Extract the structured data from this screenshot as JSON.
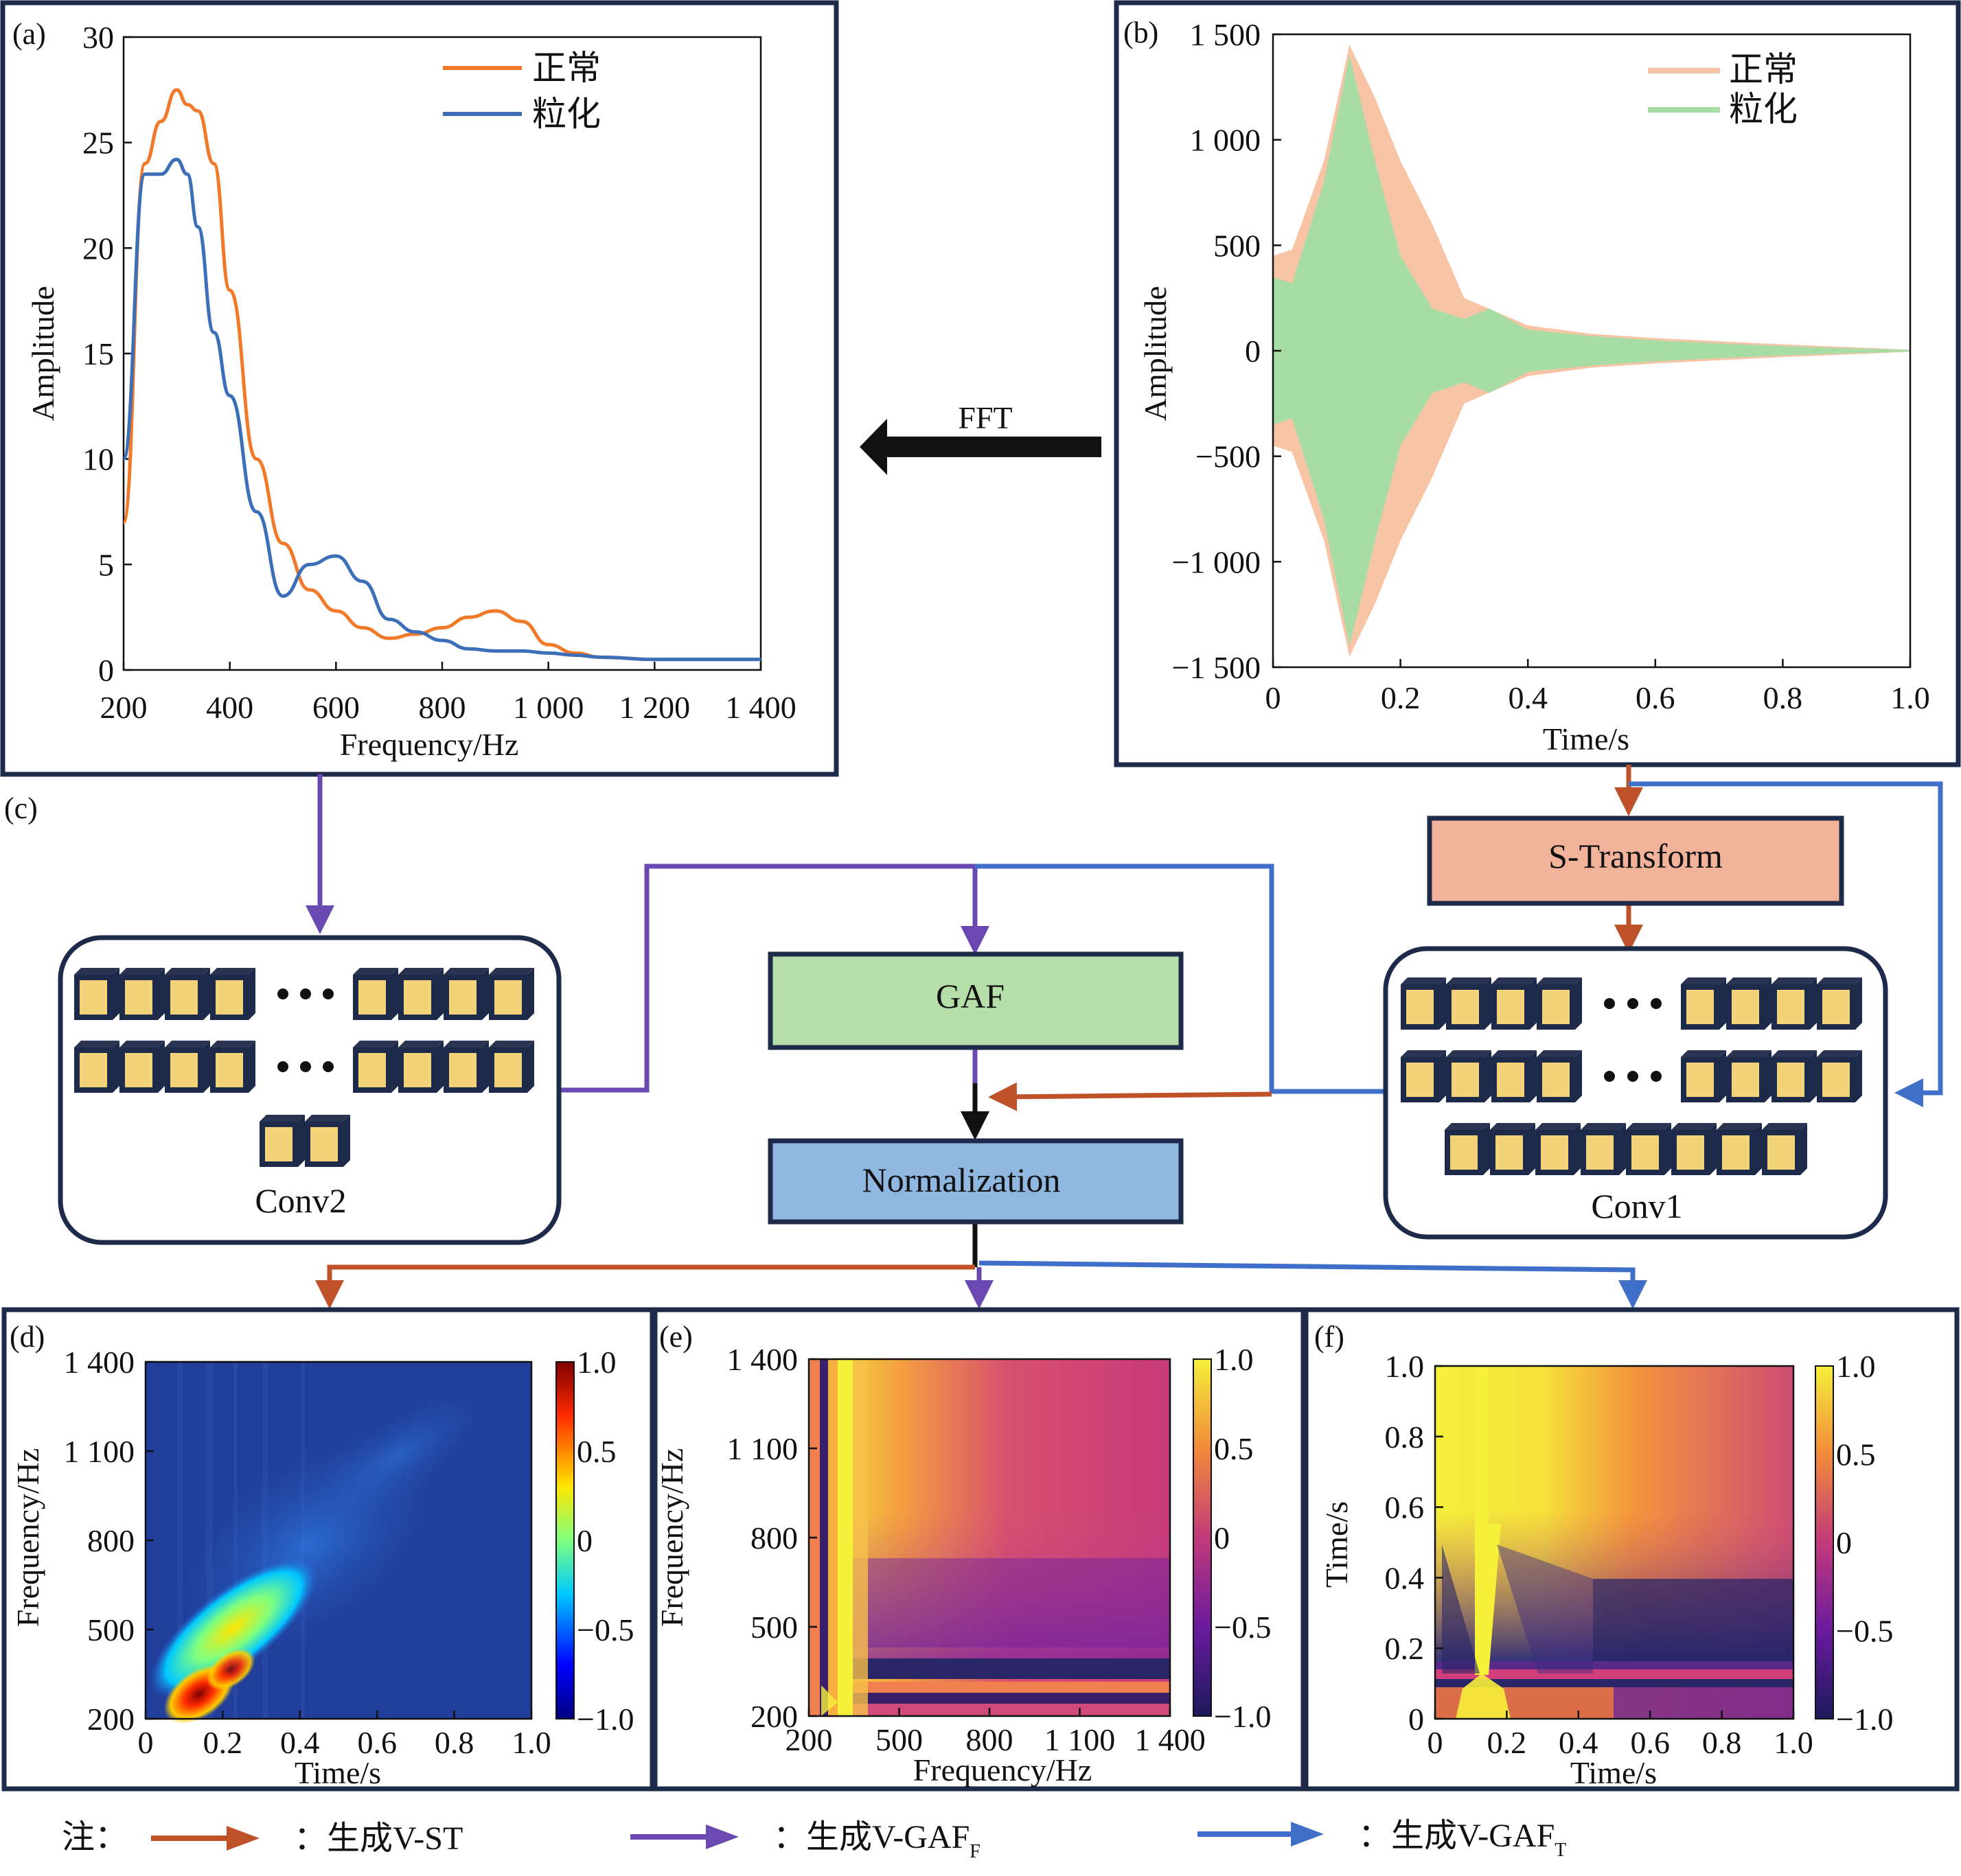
{
  "panel_a": {
    "tag": "(a)",
    "xlabel": "Frequency/Hz",
    "ylabel": "Amplitude",
    "xticks": [
      "200",
      "400",
      "600",
      "800",
      "1 000",
      "1 200",
      "1 400"
    ],
    "yticks": [
      "0",
      "5",
      "10",
      "15",
      "20",
      "25",
      "30"
    ],
    "legend": [
      "正常",
      "粒化"
    ],
    "colors": {
      "normal": "#f07a2a",
      "granulated": "#3c6fb8"
    }
  },
  "panel_b": {
    "tag": "(b)",
    "xlabel": "Time/s",
    "ylabel": "Amplitude",
    "xticks": [
      "0",
      "0.2",
      "0.4",
      "0.6",
      "0.8",
      "1.0"
    ],
    "yticks": [
      "1 500",
      "1 000",
      "500",
      "0",
      "−500",
      "−1 000",
      "−1 500"
    ],
    "legend": [
      "正常",
      "粒化"
    ],
    "colors": {
      "normal": "#f7c4a6",
      "granulated": "#a8dca5"
    }
  },
  "panel_c_tag": "(c)",
  "flow": {
    "fft_label": "FFT",
    "s_transform": "S-Transform",
    "gaf": "GAF",
    "normalization": "Normalization",
    "conv1": "Conv1",
    "conv2": "Conv2",
    "colors": {
      "st": "#c0522a",
      "gaf_f": "#6a49b3",
      "gaf_t": "#3f6fc9",
      "st_box": "#f2b39a",
      "gaf_box": "#b5dea8",
      "norm_box": "#8fb7e0",
      "cube": "#f3d37a",
      "frame": "#1d2a4a"
    }
  },
  "panel_d": {
    "tag": "(d)",
    "xlabel": "Time/s",
    "ylabel": "Frequency/Hz",
    "xticks": [
      "0",
      "0.2",
      "0.4",
      "0.6",
      "0.8",
      "1.0"
    ],
    "yticks": [
      "1 400",
      "1 100",
      "800",
      "500",
      "200"
    ],
    "cbar": [
      "1.0",
      "0.5",
      "0",
      "−0.5",
      "−1.0"
    ]
  },
  "panel_e": {
    "tag": "(e)",
    "xlabel": "Frequency/Hz",
    "ylabel": "Frequency/Hz",
    "xticks": [
      "200",
      "500",
      "800",
      "1 100",
      "1 400"
    ],
    "yticks": [
      "1 400",
      "1 100",
      "800",
      "500",
      "200"
    ],
    "cbar": [
      "1.0",
      "0.5",
      "0",
      "−0.5",
      "−1.0"
    ]
  },
  "panel_f": {
    "tag": "(f)",
    "xlabel": "Time/s",
    "ylabel": "Time/s",
    "xticks": [
      "0",
      "0.2",
      "0.4",
      "0.6",
      "0.8",
      "1.0"
    ],
    "yticks": [
      "1.0",
      "0.8",
      "0.6",
      "0.4",
      "0.2",
      "0"
    ],
    "cbar": [
      "1.0",
      "0.5",
      "0",
      "−0.5",
      "−1.0"
    ]
  },
  "note": {
    "prefix": "注：",
    "items": [
      {
        "text": "：生成V-ST",
        "sub": ""
      },
      {
        "text": "：生成V-GAF",
        "sub": "F"
      },
      {
        "text": "：生成V-GAF",
        "sub": "T"
      }
    ]
  },
  "chart_data": [
    {
      "type": "line",
      "title": "",
      "xlabel": "Frequency/Hz",
      "ylabel": "Amplitude",
      "xlim": [
        200,
        1400
      ],
      "ylim": [
        0,
        30
      ],
      "legend_position": "top-right",
      "series": [
        {
          "name": "正常",
          "x": [
            200,
            240,
            270,
            300,
            320,
            340,
            370,
            400,
            450,
            500,
            550,
            600,
            650,
            700,
            750,
            800,
            850,
            900,
            950,
            1000,
            1050,
            1100,
            1200,
            1300,
            1400
          ],
          "y": [
            7,
            24,
            26,
            27.5,
            26.8,
            26.5,
            24,
            18,
            10,
            6,
            3.8,
            2.8,
            2,
            1.5,
            1.7,
            2,
            2.5,
            2.8,
            2.3,
            1.2,
            0.8,
            0.6,
            0.5,
            0.5,
            0.5
          ]
        },
        {
          "name": "粒化",
          "x": [
            200,
            240,
            270,
            300,
            320,
            340,
            370,
            400,
            450,
            500,
            550,
            600,
            650,
            700,
            750,
            800,
            850,
            900,
            950,
            1000,
            1050,
            1100,
            1200,
            1300,
            1400
          ],
          "y": [
            10,
            23.5,
            23.5,
            24.2,
            23.5,
            21,
            16,
            13,
            7.5,
            3.5,
            5,
            5.4,
            4.2,
            2.4,
            1.8,
            1.4,
            1,
            0.9,
            0.9,
            0.8,
            0.7,
            0.6,
            0.5,
            0.5,
            0.5
          ]
        }
      ]
    },
    {
      "type": "area",
      "title": "",
      "xlabel": "Time/s",
      "ylabel": "Amplitude",
      "xlim": [
        0,
        1.0
      ],
      "ylim": [
        -1500,
        1500
      ],
      "legend_position": "top-right",
      "series": [
        {
          "name": "正常",
          "x": [
            0,
            0.03,
            0.08,
            0.12,
            0.16,
            0.2,
            0.25,
            0.3,
            0.4,
            0.5,
            0.6,
            0.7,
            0.8,
            0.9,
            1.0
          ],
          "y": [
            450,
            480,
            900,
            1450,
            1200,
            900,
            600,
            250,
            120,
            80,
            60,
            45,
            30,
            18,
            5
          ]
        },
        {
          "name": "粒化",
          "x": [
            0,
            0.03,
            0.08,
            0.12,
            0.16,
            0.2,
            0.25,
            0.3,
            0.34,
            0.4,
            0.5,
            0.6,
            0.7,
            0.8,
            0.9,
            1.0
          ],
          "y": [
            350,
            320,
            800,
            1400,
            900,
            450,
            200,
            150,
            200,
            100,
            70,
            50,
            35,
            22,
            12,
            4
          ]
        }
      ]
    },
    {
      "type": "heatmap",
      "title": "",
      "xlabel": "Time/s",
      "ylabel": "Frequency/Hz",
      "xlim": [
        0,
        1.0
      ],
      "ylim": [
        200,
        1400
      ],
      "colorbar": [
        -1,
        1
      ]
    },
    {
      "type": "heatmap",
      "title": "",
      "xlabel": "Frequency/Hz",
      "ylabel": "Frequency/Hz",
      "xlim": [
        200,
        1400
      ],
      "ylim": [
        200,
        1400
      ],
      "colorbar": [
        -1,
        1
      ]
    },
    {
      "type": "heatmap",
      "title": "",
      "xlabel": "Time/s",
      "ylabel": "Time/s",
      "xlim": [
        0,
        1.0
      ],
      "ylim": [
        0,
        1.0
      ],
      "colorbar": [
        -1,
        1
      ]
    }
  ]
}
